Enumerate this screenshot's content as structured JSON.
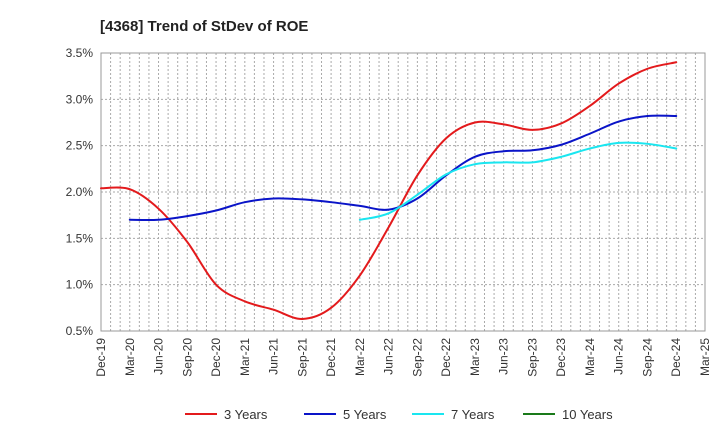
{
  "chart_data": {
    "type": "line",
    "title": "[4368]  Trend of StDev of ROE",
    "xlabel": "",
    "ylabel": "",
    "ylim": [
      0.5,
      3.5
    ],
    "y_ticks": [
      "0.5%",
      "1.0%",
      "1.5%",
      "2.0%",
      "2.5%",
      "3.0%",
      "3.5%"
    ],
    "y_tick_values": [
      0.5,
      1.0,
      1.5,
      2.0,
      2.5,
      3.0,
      3.5
    ],
    "categories": [
      "Dec-19",
      "Mar-20",
      "Jun-20",
      "Sep-20",
      "Dec-20",
      "Mar-21",
      "Jun-21",
      "Sep-21",
      "Dec-21",
      "Mar-22",
      "Jun-22",
      "Sep-22",
      "Dec-22",
      "Mar-23",
      "Jun-23",
      "Sep-23",
      "Dec-23",
      "Mar-24",
      "Jun-24",
      "Sep-24",
      "Dec-24",
      "Mar-25"
    ],
    "grid": true,
    "legend_position": "bottom",
    "series": [
      {
        "name": "3 Years",
        "color": "#e31a1c",
        "values": [
          2.04,
          2.03,
          1.82,
          1.46,
          1.0,
          0.82,
          0.73,
          0.63,
          0.75,
          1.1,
          1.62,
          2.18,
          2.58,
          2.75,
          2.73,
          2.67,
          2.74,
          2.93,
          3.17,
          3.33,
          3.4,
          null
        ]
      },
      {
        "name": "5 Years",
        "color": "#0a14c8",
        "values": [
          null,
          1.7,
          1.7,
          1.74,
          1.8,
          1.89,
          1.93,
          1.92,
          1.89,
          1.85,
          1.81,
          1.93,
          2.18,
          2.38,
          2.44,
          2.45,
          2.51,
          2.63,
          2.76,
          2.82,
          2.82,
          null
        ]
      },
      {
        "name": "7 Years",
        "color": "#1ae6f0",
        "values": [
          null,
          null,
          null,
          null,
          null,
          null,
          null,
          null,
          null,
          1.7,
          1.77,
          1.97,
          2.19,
          2.3,
          2.32,
          2.32,
          2.38,
          2.47,
          2.53,
          2.52,
          2.47,
          null
        ]
      },
      {
        "name": "10 Years",
        "color": "#1a7a1a",
        "values": [
          null,
          null,
          null,
          null,
          null,
          null,
          null,
          null,
          null,
          null,
          null,
          null,
          null,
          null,
          null,
          null,
          null,
          null,
          null,
          null,
          null,
          null
        ]
      }
    ]
  }
}
